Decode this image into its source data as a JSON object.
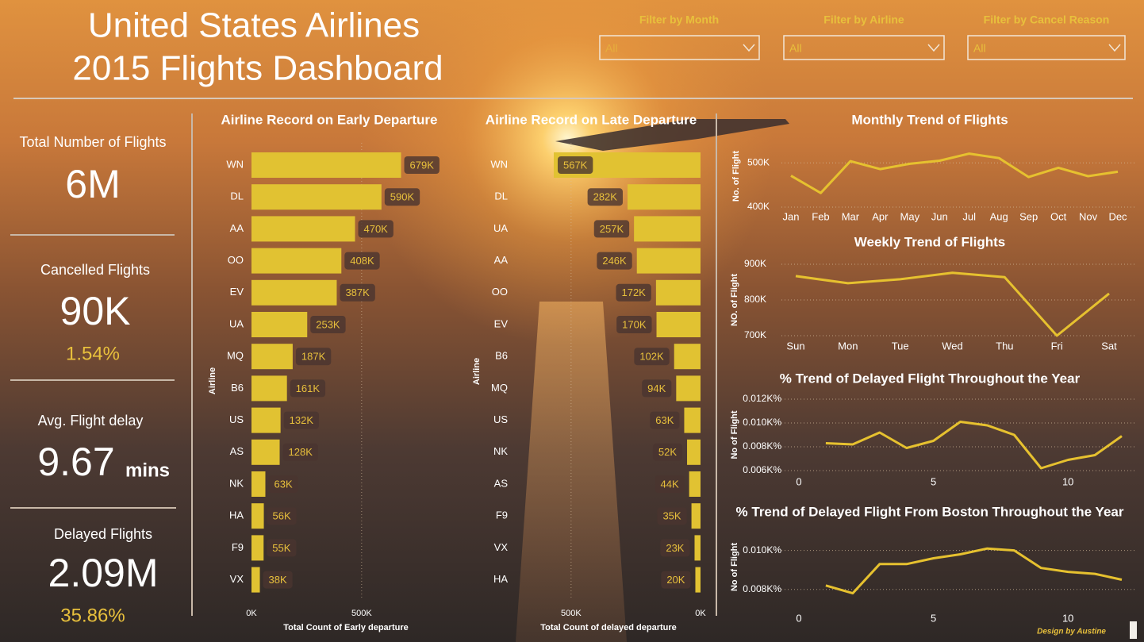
{
  "header": {
    "title_line1": "United States Airlines",
    "title_line2": "2015 Flights Dashboard"
  },
  "filters": [
    {
      "label": "Filter by Month",
      "value": "All"
    },
    {
      "label": "Filter by Airline",
      "value": "All"
    },
    {
      "label": "Filter by Cancel Reason",
      "value": "All"
    }
  ],
  "kpis": [
    {
      "label": "Total Number of Flights",
      "value": "6M"
    },
    {
      "label": "Cancelled Flights",
      "value": "90K",
      "sub": "1.54%"
    },
    {
      "label": "Avg. Flight delay",
      "value": "9.67",
      "unit": "mins"
    },
    {
      "label": "Delayed Flights",
      "value": "2.09M",
      "sub": "35.86%"
    }
  ],
  "chart_data": [
    {
      "type": "bar",
      "orientation": "horizontal",
      "title": "Airline Record on Early Departure",
      "x_label": "Total Count of Early departure",
      "y_label": "Airline",
      "categories": [
        "WN",
        "DL",
        "AA",
        "OO",
        "EV",
        "UA",
        "MQ",
        "B6",
        "US",
        "AS",
        "NK",
        "HA",
        "F9",
        "VX"
      ],
      "values": [
        679000,
        590000,
        470000,
        408000,
        387000,
        253000,
        187000,
        161000,
        132000,
        128000,
        63000,
        56000,
        55000,
        38000
      ],
      "value_labels": [
        "679K",
        "590K",
        "470K",
        "408K",
        "387K",
        "253K",
        "187K",
        "161K",
        "132K",
        "128K",
        "63K",
        "56K",
        "55K",
        "38K"
      ],
      "color": "#e1c232",
      "xlim": [
        0,
        850000
      ],
      "xticks": [
        {
          "value": 0,
          "label": "0K"
        },
        {
          "value": 500000,
          "label": "500K"
        }
      ],
      "x_reversed": false,
      "grid": true
    },
    {
      "type": "bar",
      "orientation": "horizontal",
      "title": "Airline Record on Late Departure",
      "x_label": "Total Count of delayed departure",
      "y_label": "Airline",
      "categories": [
        "WN",
        "DL",
        "UA",
        "AA",
        "OO",
        "EV",
        "B6",
        "MQ",
        "US",
        "NK",
        "AS",
        "F9",
        "VX",
        "HA"
      ],
      "values": [
        567000,
        282000,
        257000,
        246000,
        172000,
        170000,
        102000,
        94000,
        63000,
        52000,
        44000,
        35000,
        23000,
        20000
      ],
      "value_labels": [
        "567K",
        "282K",
        "257K",
        "246K",
        "172K",
        "170K",
        "102K",
        "94K",
        "63K",
        "52K",
        "44K",
        "35K",
        "23K",
        "20K"
      ],
      "color": "#e1c232",
      "xlim": [
        0,
        570000
      ],
      "xticks": [
        {
          "value": 0,
          "label": "0K"
        },
        {
          "value": 500000,
          "label": "500K"
        }
      ],
      "x_reversed": true,
      "grid": true
    },
    {
      "type": "line",
      "title": "Monthly Trend of Flights",
      "y_label": "No. of Flight",
      "categories": [
        "Jan",
        "Feb",
        "Mar",
        "Apr",
        "May",
        "Jun",
        "Jul",
        "Aug",
        "Sep",
        "Oct",
        "Nov",
        "Dec"
      ],
      "values": [
        471000,
        432000,
        504000,
        486000,
        498000,
        505000,
        521000,
        511000,
        468000,
        489000,
        470000,
        480000
      ],
      "color": "#e6c12f",
      "ylim": [
        400000,
        540000
      ],
      "yticks": [
        {
          "value": 400000,
          "label": "400K"
        },
        {
          "value": 500000,
          "label": "500K"
        }
      ],
      "grid": true
    },
    {
      "type": "line",
      "title": "Weekly Trend of Flights",
      "y_label": "NO. of Flight",
      "categories": [
        "Sun",
        "Mon",
        "Tue",
        "Wed",
        "Thu",
        "Fri",
        "Sat"
      ],
      "values": [
        867000,
        847000,
        858000,
        876000,
        864000,
        700000,
        818000
      ],
      "color": "#e6c12f",
      "ylim": [
        700000,
        900000
      ],
      "yticks": [
        {
          "value": 700000,
          "label": "700K"
        },
        {
          "value": 800000,
          "label": "800K"
        },
        {
          "value": 900000,
          "label": "900K"
        }
      ],
      "grid": true
    },
    {
      "type": "line",
      "title": "% Trend of Delayed Flight Throughout the Year",
      "y_label": "No of Flight",
      "x": [
        1,
        2,
        3,
        4,
        5,
        6,
        7,
        8,
        9,
        10,
        11,
        12
      ],
      "values": [
        0.0083,
        0.0082,
        0.0092,
        0.0079,
        0.0085,
        0.0101,
        0.0098,
        0.009,
        0.0062,
        0.0069,
        0.0073,
        0.0089
      ],
      "color": "#e6c12f",
      "xlim": [
        0,
        12.5
      ],
      "xticks": [
        0,
        5,
        10
      ],
      "ylim": [
        0.0055,
        0.0125
      ],
      "yticks": [
        {
          "value": 0.006,
          "label": "0.006K%"
        },
        {
          "value": 0.008,
          "label": "0.008K%"
        },
        {
          "value": 0.01,
          "label": "0.010K%"
        },
        {
          "value": 0.012,
          "label": "0.012K%"
        }
      ],
      "grid": true
    },
    {
      "type": "line",
      "title": "% Trend of Delayed Flight From Boston Throughout the Year",
      "y_label": "No of Flight",
      "x": [
        1,
        2,
        3,
        4,
        5,
        6,
        7,
        8,
        9,
        10,
        11,
        12
      ],
      "values": [
        0.0082,
        0.0078,
        0.0093,
        0.0093,
        0.0096,
        0.0098,
        0.0101,
        0.01,
        0.0091,
        0.0089,
        0.0088,
        0.0085
      ],
      "color": "#e6c12f",
      "xlim": [
        0,
        12.5
      ],
      "xticks": [
        0,
        5,
        10
      ],
      "ylim": [
        0.0075,
        0.0108
      ],
      "yticks": [
        {
          "value": 0.008,
          "label": "0.008K%"
        },
        {
          "value": 0.01,
          "label": "0.010K%"
        }
      ],
      "grid": true
    }
  ],
  "footer": "Design by Austine"
}
